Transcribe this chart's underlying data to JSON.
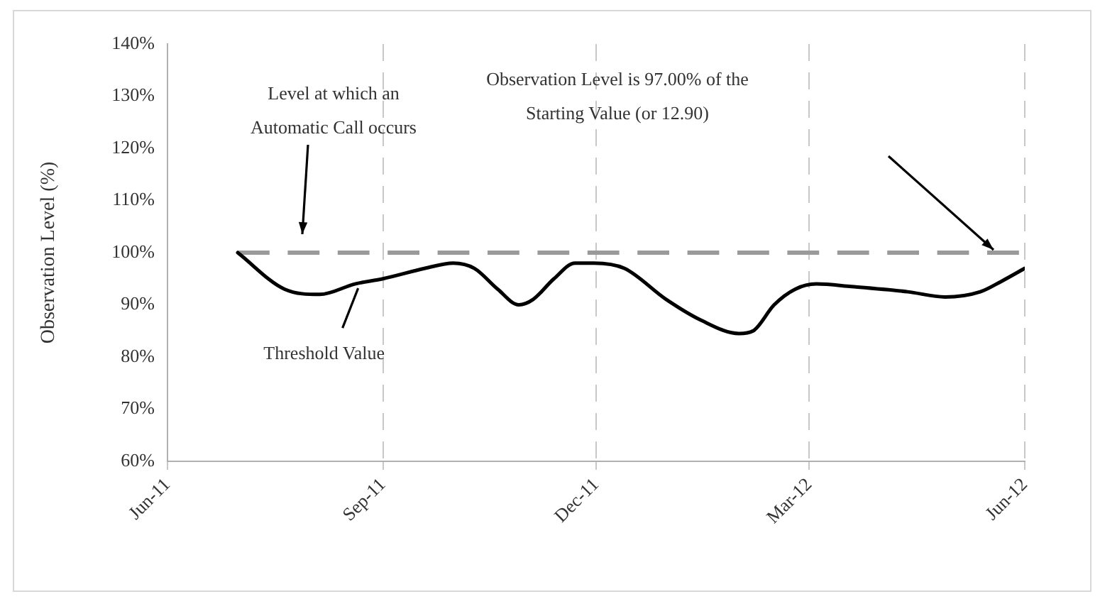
{
  "chart_data": {
    "type": "line",
    "ylabel": "Observation Level (%)",
    "x": [
      "2011-07-01",
      "2011-07-21",
      "2011-08-05",
      "2011-08-20",
      "2011-09-01",
      "2011-09-19",
      "2011-10-01",
      "2011-10-10",
      "2011-10-20",
      "2011-10-29",
      "2011-11-04",
      "2011-11-13",
      "2011-11-22",
      "2011-11-30",
      "2011-12-13",
      "2011-12-31",
      "2012-01-15",
      "2012-01-31",
      "2012-02-06",
      "2012-02-15",
      "2012-02-24",
      "2012-03-04",
      "2012-03-19",
      "2012-04-12",
      "2012-04-28",
      "2012-05-13",
      "2012-05-22",
      "2012-06-01"
    ],
    "series": [
      {
        "color": "#000000",
        "values": [
          100,
          93,
          92,
          94,
          95,
          97,
          98,
          97,
          93,
          90,
          91,
          95,
          98,
          98,
          97,
          91,
          87,
          84.5,
          85,
          90,
          93,
          94,
          93.5,
          92.5,
          91.5,
          92.5,
          94.5,
          97
        ]
      }
    ],
    "xlim": [
      "2011-06-01",
      "2012-06-01"
    ],
    "xticks": [
      {
        "value": "2011-06-01",
        "label": "Jun-11"
      },
      {
        "value": "2011-09-01",
        "label": "Sep-11"
      },
      {
        "value": "2011-12-01",
        "label": "Dec-11"
      },
      {
        "value": "2012-03-01",
        "label": "Mar-12"
      },
      {
        "value": "2012-06-01",
        "label": "Jun-12"
      }
    ],
    "ylim": [
      60,
      140
    ],
    "yticks": [
      {
        "value": 60,
        "label": "60%"
      },
      {
        "value": 70,
        "label": "70%"
      },
      {
        "value": 80,
        "label": "80%"
      },
      {
        "value": 90,
        "label": "90%"
      },
      {
        "value": 100,
        "label": "100%"
      },
      {
        "value": 110,
        "label": "110%"
      },
      {
        "value": 120,
        "label": "120%"
      },
      {
        "value": 130,
        "label": "130%"
      },
      {
        "value": 140,
        "label": "140%"
      }
    ],
    "grid": "x",
    "legend": false,
    "marker": "none",
    "line_style": "solid",
    "ref_lines": [
      {
        "axis": "y",
        "value": 100,
        "color": "#9a9a9a",
        "line_style": "dashed"
      }
    ],
    "annotations": [
      "Level at which an Automatic Call occurs",
      {
        "text": "Threshold Value",
        "x": "2011-08-22",
        "y": 94
      },
      "Observation Level is 97.00% of the Starting Value (or 12.90)"
    ]
  }
}
